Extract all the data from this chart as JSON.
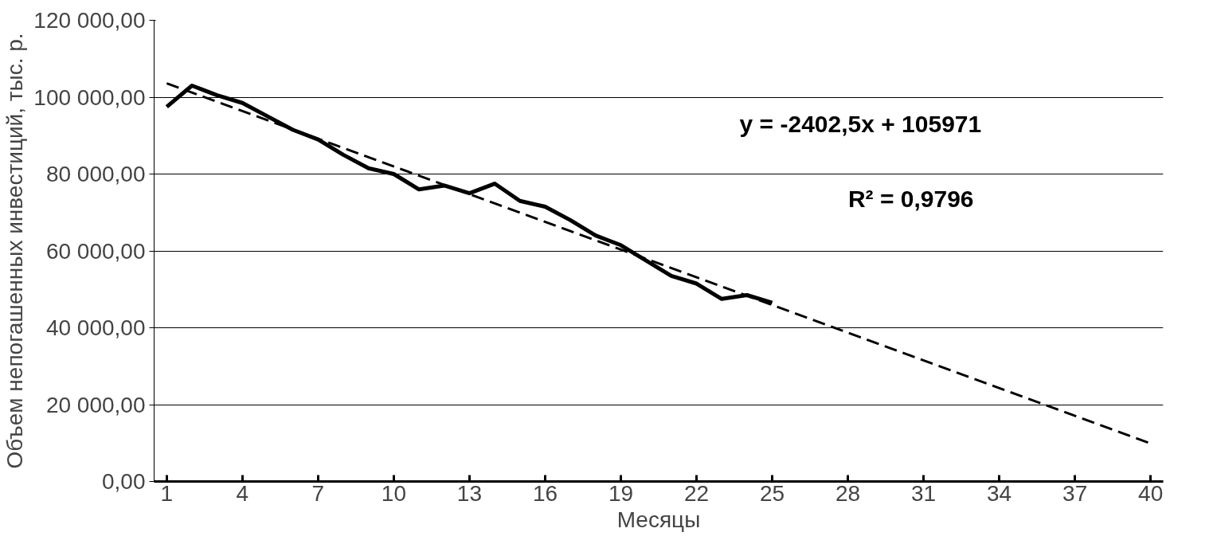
{
  "chart_data": {
    "type": "line",
    "xlabel": "Месяцы",
    "ylabel": "Объем непогашенных инвестиций, тыс. р.",
    "annotations": [
      "y = -2402,5x + 105971",
      "R² = 0,9796"
    ],
    "series": [
      {
        "color": "#000000",
        "line_style": "solid",
        "x": [
          1,
          2,
          3,
          4,
          5,
          6,
          7,
          8,
          9,
          10,
          11,
          12,
          13,
          14,
          15,
          16,
          17,
          18,
          19,
          20,
          21,
          22,
          23,
          24,
          25
        ],
        "values": [
          97500,
          103000,
          100500,
          98500,
          95000,
          91500,
          89000,
          85000,
          81500,
          80000,
          76000,
          77000,
          75000,
          77500,
          73000,
          71500,
          68000,
          64000,
          61500,
          57500,
          53500,
          51500,
          47500,
          48500,
          46500
        ]
      },
      {
        "type": "line",
        "color": "#000000",
        "line_style": "dashed",
        "x": [
          1,
          40
        ],
        "values": [
          103600,
          9900
        ]
      }
    ],
    "xlim": [
      0.5,
      40.5
    ],
    "xticks": [
      1,
      4,
      7,
      10,
      13,
      16,
      19,
      22,
      25,
      28,
      31,
      34,
      37,
      40
    ],
    "ylim": [
      0,
      120000
    ],
    "yticks": [
      {
        "value": 0,
        "label": "0,00"
      },
      {
        "value": 20000,
        "label": "20 000,00"
      },
      {
        "value": 40000,
        "label": "40 000,00"
      },
      {
        "value": 60000,
        "label": "60 000,00"
      },
      {
        "value": 80000,
        "label": "80 000,00"
      },
      {
        "value": 100000,
        "label": "100 000,00"
      },
      {
        "value": 120000,
        "label": "120 000,00"
      }
    ],
    "grid": "y",
    "marker": "none"
  }
}
